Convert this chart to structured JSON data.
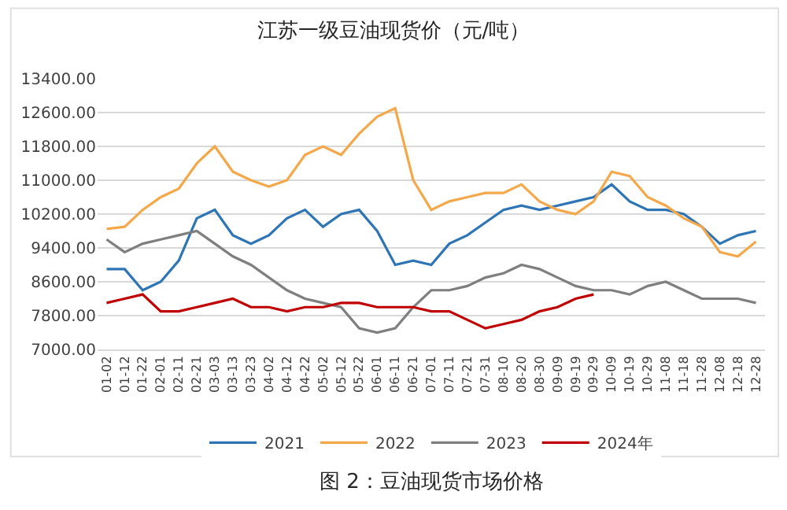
{
  "chart_data": {
    "type": "line",
    "title": "江苏一级豆油现货价（元/吨）",
    "categories": [
      "01-02",
      "01-12",
      "01-22",
      "02-01",
      "02-11",
      "02-21",
      "03-03",
      "03-13",
      "03-23",
      "04-02",
      "04-12",
      "04-22",
      "05-02",
      "05-12",
      "05-22",
      "06-01",
      "06-11",
      "06-21",
      "07-01",
      "07-11",
      "07-21",
      "07-31",
      "08-10",
      "08-20",
      "08-30",
      "09-09",
      "09-19",
      "09-29",
      "10-09",
      "10-19",
      "10-29",
      "11-08",
      "11-18",
      "11-28",
      "12-08",
      "12-18",
      "12-28"
    ],
    "series": [
      {
        "name": "2021",
        "color": "#2e75b6",
        "values": [
          8900,
          8900,
          8400,
          8600,
          9100,
          10100,
          10300,
          9700,
          9500,
          9700,
          10100,
          10300,
          9900,
          10200,
          10300,
          9800,
          9000,
          9100,
          9000,
          9500,
          9700,
          10000,
          10300,
          10400,
          10300,
          10400,
          10500,
          10600,
          10900,
          10500,
          10300,
          10300,
          10200,
          9900,
          9500,
          9700,
          9800
        ]
      },
      {
        "name": "2022",
        "color": "#f4a84a",
        "values": [
          9850,
          9900,
          10300,
          10600,
          10800,
          11400,
          11800,
          11200,
          11000,
          10850,
          11000,
          11600,
          11800,
          11600,
          12100,
          12500,
          12700,
          11000,
          10300,
          10500,
          10600,
          10700,
          10700,
          10900,
          10500,
          10300,
          10200,
          10500,
          11200,
          11100,
          10600,
          10400,
          10100,
          9900,
          9300,
          9200,
          9550
        ]
      },
      {
        "name": "2023",
        "color": "#7f7f7f",
        "values": [
          9600,
          9300,
          9500,
          9600,
          9700,
          9800,
          9500,
          9200,
          9000,
          8700,
          8400,
          8200,
          8100,
          8000,
          7500,
          7400,
          7500,
          8000,
          8400,
          8400,
          8500,
          8700,
          8800,
          9000,
          8900,
          8700,
          8500,
          8400,
          8400,
          8300,
          8500,
          8600,
          8400,
          8200,
          8200,
          8200,
          8100
        ]
      },
      {
        "name": "2024年",
        "color": "#c00000",
        "values": [
          8100,
          8200,
          8300,
          7900,
          7900,
          8000,
          8100,
          8200,
          8000,
          8000,
          7900,
          8000,
          8000,
          8100,
          8100,
          8000,
          8000,
          8000,
          7900,
          7900,
          7700,
          7500,
          7600,
          7700,
          7900,
          8000,
          8200,
          8300,
          null,
          null,
          null,
          null,
          null,
          null,
          null,
          null,
          null
        ]
      }
    ],
    "ylim": [
      7000,
      13400
    ],
    "yticks": [
      {
        "value": 7000,
        "label": "7000.00"
      },
      {
        "value": 7800,
        "label": "7800.00"
      },
      {
        "value": 8600,
        "label": "8600.00"
      },
      {
        "value": 9400,
        "label": "9400.00"
      },
      {
        "value": 10200,
        "label": "10200.00"
      },
      {
        "value": 11000,
        "label": "11000.00"
      },
      {
        "value": 11800,
        "label": "11800.00"
      },
      {
        "value": 12600,
        "label": "12600.00"
      },
      {
        "value": 13400,
        "label": "13400.00"
      }
    ],
    "grid": "y",
    "legend": "bottom",
    "marker": "none",
    "line_style": "solid",
    "annotations": [
      "图 2：豆油现货市场价格"
    ]
  }
}
